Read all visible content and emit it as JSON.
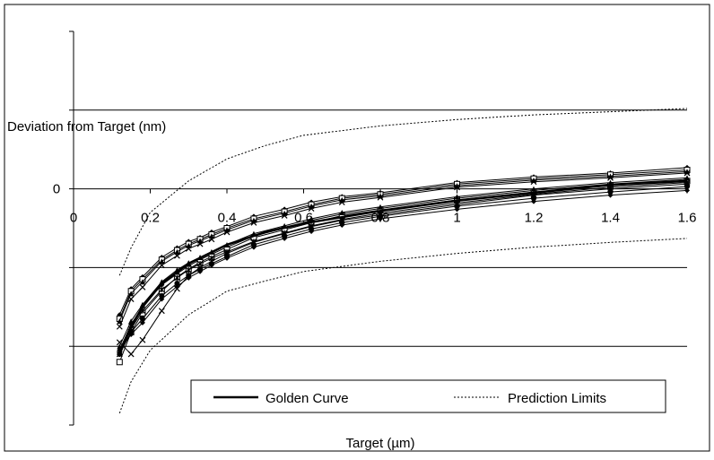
{
  "chart_data": {
    "type": "line",
    "title": "",
    "xlabel": "Target (µm)",
    "ylabel": "Deviation from Target (nm)",
    "xlim": [
      0,
      1.6
    ],
    "ylim": [
      -3,
      2
    ],
    "x_ticks": [
      "0",
      "0.2",
      "0.4",
      "0.6",
      "0.8",
      "1",
      "1.2",
      "1.4",
      "1.6"
    ],
    "x_tick_values": [
      0,
      0.2,
      0.4,
      0.6,
      0.8,
      1,
      1.2,
      1.4,
      1.6
    ],
    "y_tick_labels": [
      {
        "value": 0,
        "label": "0"
      }
    ],
    "y_gridlines": [
      1,
      0,
      -1,
      -2
    ],
    "grid": true,
    "legend": {
      "position": "bottom-right",
      "entries": [
        {
          "label": "Golden Curve",
          "style": "solid-thick"
        },
        {
          "label": "Prediction Limits",
          "style": "dotted"
        }
      ]
    },
    "golden_curve": {
      "x": [
        0.12,
        0.15,
        0.18,
        0.23,
        0.3,
        0.4,
        0.5,
        0.6,
        0.7,
        0.8,
        1.0,
        1.2,
        1.4,
        1.6
      ],
      "y": [
        -2.1,
        -1.75,
        -1.5,
        -1.2,
        -0.95,
        -0.71,
        -0.55,
        -0.44,
        -0.36,
        -0.28,
        -0.15,
        -0.05,
        0.05,
        0.1
      ]
    },
    "prediction_limits": {
      "upper": {
        "x": [
          0.12,
          0.15,
          0.2,
          0.3,
          0.4,
          0.5,
          0.6,
          0.8,
          1.0,
          1.2,
          1.4,
          1.6
        ],
        "y": [
          -1.1,
          -0.75,
          -0.3,
          0.1,
          0.38,
          0.55,
          0.68,
          0.8,
          0.88,
          0.94,
          0.98,
          1.02
        ]
      },
      "lower": {
        "x": [
          0.12,
          0.15,
          0.2,
          0.3,
          0.4,
          0.5,
          0.6,
          0.8,
          1.0,
          1.2,
          1.4,
          1.6
        ],
        "y": [
          -2.85,
          -2.45,
          -2.05,
          -1.6,
          -1.3,
          -1.17,
          -1.05,
          -0.92,
          -0.82,
          -0.74,
          -0.68,
          -0.63
        ]
      }
    },
    "measurement_series": [
      {
        "marker": "diamond",
        "x": [
          0.12,
          0.15,
          0.18,
          0.23,
          0.27,
          0.3,
          0.33,
          0.36,
          0.4,
          0.47,
          0.55,
          0.62,
          0.7,
          0.8,
          1.0,
          1.2,
          1.4,
          1.6
        ],
        "y": [
          -1.6,
          -1.27,
          -1.12,
          -0.87,
          -0.75,
          -0.67,
          -0.62,
          -0.55,
          -0.48,
          -0.35,
          -0.26,
          -0.17,
          -0.1,
          -0.05,
          0.08,
          0.15,
          0.2,
          0.27
        ]
      },
      {
        "marker": "square",
        "x": [
          0.12,
          0.15,
          0.18,
          0.23,
          0.27,
          0.3,
          0.33,
          0.36,
          0.4,
          0.47,
          0.55,
          0.62,
          0.7,
          0.8,
          1.0,
          1.2,
          1.4,
          1.6
        ],
        "y": [
          -1.65,
          -1.3,
          -1.15,
          -0.9,
          -0.78,
          -0.7,
          -0.64,
          -0.58,
          -0.5,
          -0.38,
          -0.29,
          -0.2,
          -0.12,
          -0.07,
          0.06,
          0.13,
          0.18,
          0.24
        ]
      },
      {
        "marker": "triangle",
        "x": [
          0.12,
          0.15,
          0.18,
          0.23,
          0.27,
          0.3,
          0.33,
          0.36,
          0.4,
          0.47,
          0.55,
          0.62,
          0.7,
          0.8,
          1.0,
          1.2,
          1.4,
          1.6
        ],
        "y": [
          -1.68,
          -1.33,
          -1.18,
          -0.92,
          -0.8,
          -0.72,
          -0.66,
          -0.6,
          -0.52,
          -0.4,
          -0.31,
          -0.22,
          -0.14,
          -0.09,
          0.04,
          0.11,
          0.16,
          0.22
        ]
      },
      {
        "marker": "x",
        "x": [
          0.12,
          0.15,
          0.18,
          0.23,
          0.27,
          0.3,
          0.33,
          0.36,
          0.4,
          0.47,
          0.55,
          0.62,
          0.7,
          0.8,
          1.0,
          1.2,
          1.4,
          1.6
        ],
        "y": [
          -1.75,
          -1.4,
          -1.25,
          -0.97,
          -0.85,
          -0.76,
          -0.7,
          -0.64,
          -0.55,
          -0.43,
          -0.34,
          -0.25,
          -0.17,
          -0.11,
          0.02,
          0.09,
          0.14,
          0.2
        ]
      },
      {
        "marker": "diamond",
        "x": [
          0.12,
          0.15,
          0.18,
          0.23,
          0.27,
          0.3,
          0.33,
          0.36,
          0.4,
          0.47,
          0.55,
          0.62,
          0.7,
          0.8,
          1.0,
          1.2,
          1.4,
          1.6
        ],
        "y": [
          -2.05,
          -1.72,
          -1.5,
          -1.22,
          -1.08,
          -0.98,
          -0.9,
          -0.83,
          -0.74,
          -0.6,
          -0.5,
          -0.4,
          -0.32,
          -0.25,
          -0.12,
          -0.02,
          0.06,
          0.12
        ]
      },
      {
        "marker": "square",
        "x": [
          0.12,
          0.15,
          0.18,
          0.23,
          0.27,
          0.3,
          0.33,
          0.36,
          0.4,
          0.47,
          0.55,
          0.62,
          0.7,
          0.8,
          1.0,
          1.2,
          1.4,
          1.6
        ],
        "y": [
          -2.2,
          -1.82,
          -1.58,
          -1.3,
          -1.12,
          -1.02,
          -0.93,
          -0.86,
          -0.77,
          -0.62,
          -0.52,
          -0.43,
          -0.34,
          -0.27,
          -0.14,
          -0.04,
          0.04,
          0.1
        ]
      },
      {
        "marker": "triangle",
        "x": [
          0.12,
          0.15,
          0.18,
          0.23,
          0.27,
          0.3,
          0.33,
          0.36,
          0.4,
          0.47,
          0.55,
          0.62,
          0.7,
          0.8,
          1.0,
          1.2,
          1.4,
          1.6
        ],
        "y": [
          -2.0,
          -1.68,
          -1.47,
          -1.18,
          -1.03,
          -0.94,
          -0.87,
          -0.8,
          -0.71,
          -0.57,
          -0.47,
          -0.38,
          -0.3,
          -0.23,
          -0.1,
          0.0,
          0.08,
          0.14
        ]
      },
      {
        "marker": "x",
        "x": [
          0.12,
          0.15,
          0.18,
          0.23,
          0.27,
          0.3,
          0.33,
          0.36,
          0.4,
          0.47,
          0.55,
          0.62,
          0.7,
          0.8,
          1.0,
          1.2,
          1.4,
          1.6
        ],
        "y": [
          -1.95,
          -2.1,
          -1.92,
          -1.55,
          -1.27,
          -1.1,
          -1.0,
          -0.92,
          -0.82,
          -0.68,
          -0.57,
          -0.48,
          -0.4,
          -0.33,
          -0.2,
          -0.08,
          0.0,
          0.06
        ]
      },
      {
        "marker": "star",
        "x": [
          0.12,
          0.15,
          0.18,
          0.23,
          0.27,
          0.3,
          0.33,
          0.36,
          0.4,
          0.47,
          0.55,
          0.62,
          0.7,
          0.8,
          1.0,
          1.2,
          1.4,
          1.6
        ],
        "y": [
          -2.1,
          -1.78,
          -1.55,
          -1.28,
          -1.13,
          -1.03,
          -0.95,
          -0.88,
          -0.8,
          -0.67,
          -0.56,
          -0.47,
          -0.39,
          -0.31,
          -0.18,
          -0.07,
          0.02,
          0.08
        ]
      },
      {
        "marker": "circle",
        "x": [
          0.12,
          0.15,
          0.18,
          0.23,
          0.27,
          0.3,
          0.33,
          0.36,
          0.4,
          0.47,
          0.55,
          0.62,
          0.7,
          0.8,
          1.0,
          1.2,
          1.4,
          1.6
        ],
        "y": [
          -2.1,
          -1.82,
          -1.65,
          -1.36,
          -1.2,
          -1.1,
          -1.02,
          -0.95,
          -0.86,
          -0.71,
          -0.6,
          -0.51,
          -0.43,
          -0.35,
          -0.22,
          -0.12,
          -0.04,
          0.03
        ]
      },
      {
        "marker": "diamond",
        "x": [
          0.12,
          0.15,
          0.18,
          0.23,
          0.27,
          0.3,
          0.33,
          0.36,
          0.4,
          0.47,
          0.55,
          0.62,
          0.7,
          0.8,
          1.0,
          1.2,
          1.4,
          1.6
        ],
        "y": [
          -2.05,
          -1.85,
          -1.7,
          -1.4,
          -1.24,
          -1.13,
          -1.05,
          -0.97,
          -0.88,
          -0.74,
          -0.63,
          -0.54,
          -0.46,
          -0.38,
          -0.26,
          -0.16,
          -0.08,
          -0.02
        ]
      }
    ]
  }
}
